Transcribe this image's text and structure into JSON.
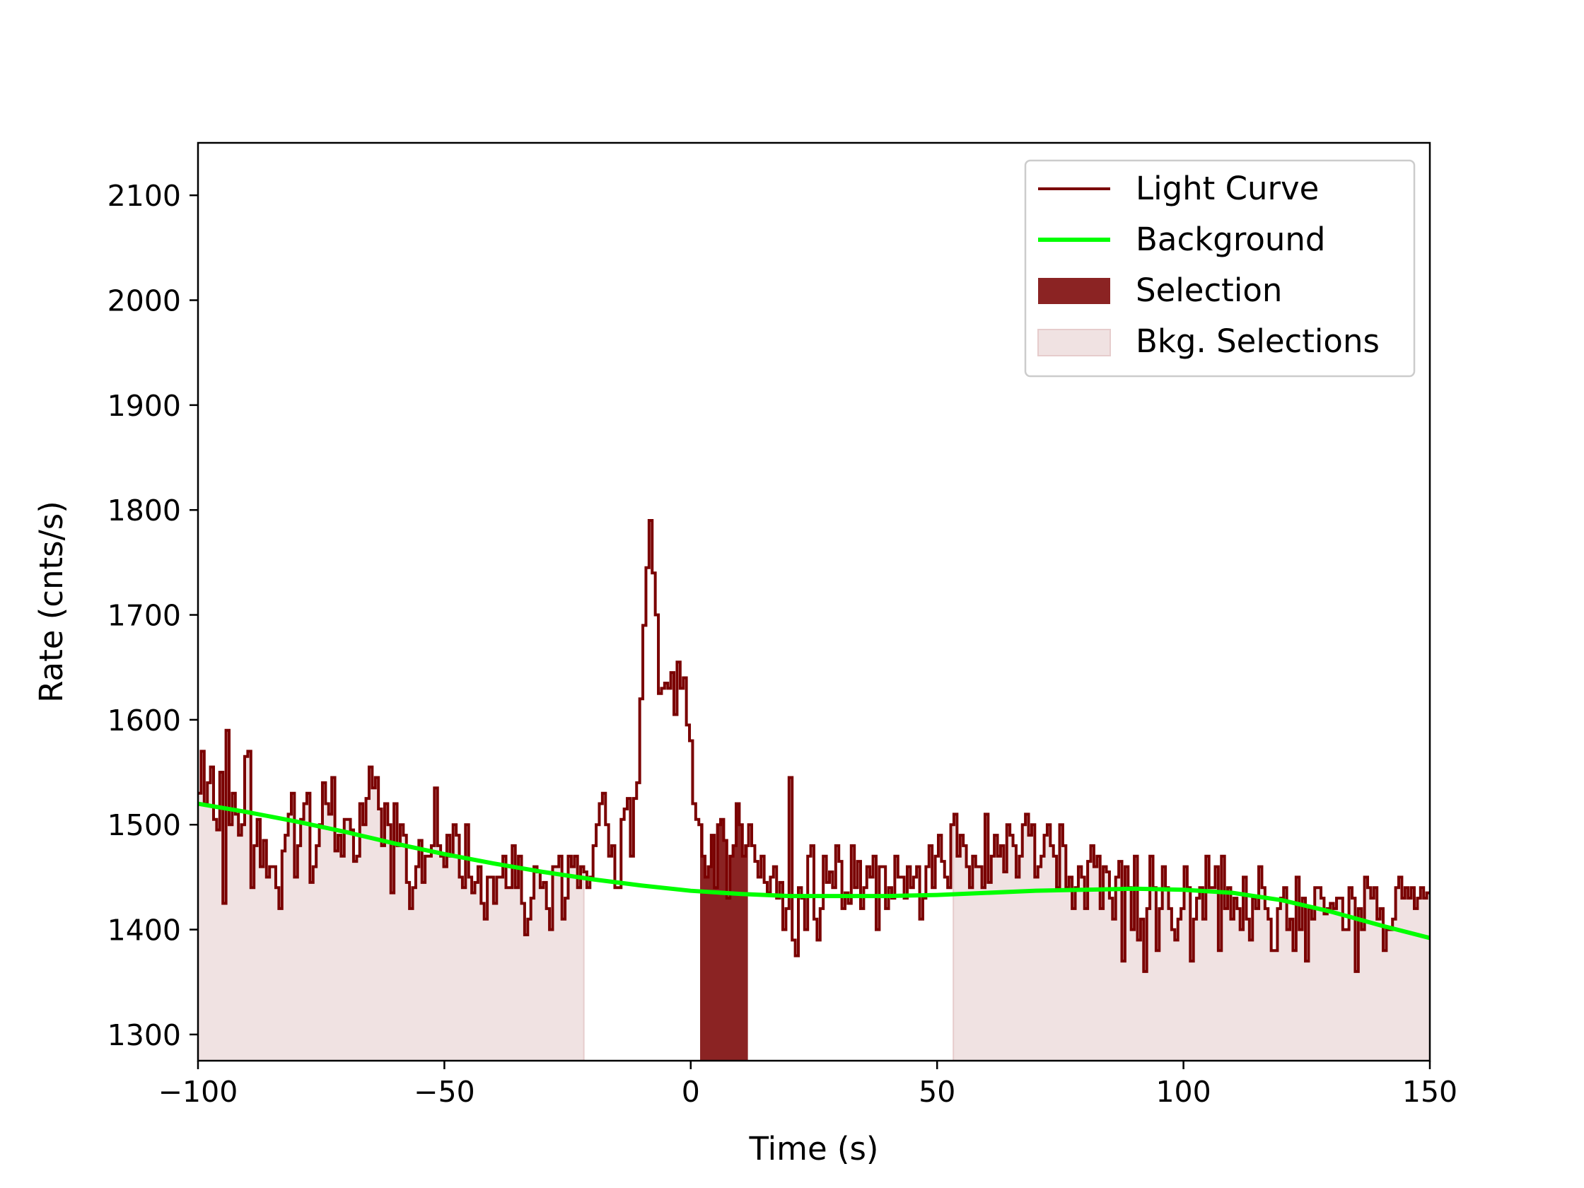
{
  "chart_data": {
    "type": "line",
    "title": "",
    "xlabel": "Time (s)",
    "ylabel": "Rate (cnts/s)",
    "xlim": [
      -100,
      150
    ],
    "ylim": [
      1275,
      2150
    ],
    "x_ticks": [
      -100,
      -50,
      0,
      50,
      100,
      150
    ],
    "x_tick_labels": [
      "−100",
      "−50",
      "0",
      "50",
      "100",
      "150"
    ],
    "y_ticks": [
      1300,
      1400,
      1500,
      1600,
      1700,
      1800,
      1900,
      2000,
      2100
    ],
    "y_tick_labels": [
      "1300",
      "1400",
      "1500",
      "1600",
      "1700",
      "1800",
      "1900",
      "2000",
      "2100"
    ],
    "grid": false,
    "legend_position": "top-right",
    "legend": [
      "Light Curve",
      "Background",
      "Selection",
      "Bkg. Selections"
    ],
    "colors": {
      "light_curve": "#7a0000",
      "background": "#00ff00",
      "selection": "#8b2323",
      "bkg_selection": "#f0e2e2",
      "bkg_selection_edge": "#e6cccc"
    },
    "bin_width": 1.024,
    "light_curve_x": [
      -100,
      150
    ],
    "light_curve_rates": [
      1530,
      1570,
      1520,
      1540,
      1555,
      1505,
      1495,
      1550,
      1425,
      1590,
      1500,
      1530,
      1510,
      1490,
      1500,
      1565,
      1570,
      1440,
      1480,
      1505,
      1460,
      1485,
      1450,
      1460,
      1460,
      1440,
      1420,
      1475,
      1490,
      1510,
      1530,
      1450,
      1480,
      1505,
      1520,
      1530,
      1445,
      1460,
      1480,
      1500,
      1540,
      1520,
      1510,
      1545,
      1475,
      1490,
      1470,
      1505,
      1505,
      1495,
      1465,
      1470,
      1520,
      1500,
      1525,
      1555,
      1535,
      1545,
      1515,
      1480,
      1520,
      1500,
      1435,
      1520,
      1480,
      1500,
      1490,
      1445,
      1420,
      1440,
      1460,
      1485,
      1445,
      1470,
      1470,
      1480,
      1535,
      1480,
      1470,
      1460,
      1490,
      1470,
      1500,
      1490,
      1450,
      1440,
      1500,
      1450,
      1435,
      1445,
      1460,
      1425,
      1410,
      1450,
      1450,
      1425,
      1450,
      1450,
      1470,
      1440,
      1440,
      1480,
      1440,
      1470,
      1425,
      1395,
      1410,
      1430,
      1460,
      1455,
      1440,
      1445,
      1420,
      1400,
      1460,
      1460,
      1470,
      1410,
      1430,
      1470,
      1460,
      1470,
      1440,
      1460,
      1455,
      1440,
      1450,
      1480,
      1500,
      1520,
      1530,
      1500,
      1470,
      1480,
      1440,
      1440,
      1505,
      1515,
      1525,
      1470,
      1525,
      1540,
      1620,
      1690,
      1745,
      1790,
      1740,
      1700,
      1625,
      1630,
      1635,
      1630,
      1645,
      1605,
      1655,
      1630,
      1640,
      1595,
      1580,
      1520,
      1505,
      1500,
      1470,
      1450,
      1460,
      1490,
      1440,
      1500,
      1505,
      1485,
      1430,
      1470,
      1480,
      1520,
      1500,
      1470,
      1480,
      1500,
      1480,
      1465,
      1450,
      1470,
      1445,
      1435,
      1450,
      1460,
      1430,
      1445,
      1400,
      1420,
      1545,
      1390,
      1375,
      1440,
      1430,
      1400,
      1470,
      1480,
      1410,
      1390,
      1420,
      1470,
      1445,
      1455,
      1440,
      1480,
      1465,
      1420,
      1435,
      1425,
      1480,
      1440,
      1465,
      1420,
      1440,
      1460,
      1450,
      1470,
      1400,
      1460,
      1460,
      1420,
      1440,
      1430,
      1470,
      1450,
      1450,
      1430,
      1460,
      1440,
      1450,
      1460,
      1410,
      1430,
      1460,
      1480,
      1440,
      1470,
      1490,
      1465,
      1450,
      1440,
      1500,
      1510,
      1470,
      1490,
      1480,
      1460,
      1440,
      1470,
      1460,
      1460,
      1440,
      1510,
      1445,
      1470,
      1490,
      1470,
      1480,
      1455,
      1500,
      1490,
      1480,
      1450,
      1470,
      1500,
      1510,
      1490,
      1500,
      1450,
      1460,
      1470,
      1490,
      1500,
      1480,
      1470,
      1440,
      1500,
      1480,
      1440,
      1450,
      1420,
      1440,
      1460,
      1450,
      1420,
      1465,
      1480,
      1460,
      1470,
      1420,
      1460,
      1455,
      1430,
      1410,
      1450,
      1465,
      1370,
      1460,
      1440,
      1400,
      1470,
      1390,
      1410,
      1360,
      1420,
      1470,
      1440,
      1380,
      1420,
      1460,
      1440,
      1420,
      1400,
      1390,
      1410,
      1420,
      1460,
      1440,
      1370,
      1410,
      1430,
      1440,
      1410,
      1470,
      1440,
      1440,
      1460,
      1380,
      1470,
      1420,
      1440,
      1410,
      1430,
      1420,
      1400,
      1450,
      1410,
      1390,
      1430,
      1420,
      1460,
      1440,
      1420,
      1410,
      1380,
      1380,
      1420,
      1430,
      1440,
      1400,
      1410,
      1380,
      1450,
      1400,
      1430,
      1370,
      1420,
      1410,
      1440,
      1440,
      1430,
      1415,
      1420,
      1425,
      1420,
      1430,
      1430,
      1400,
      1400,
      1440,
      1430,
      1360,
      1420,
      1400,
      1450,
      1440,
      1430,
      1440,
      1410,
      1420,
      1380,
      1400,
      1400,
      1410,
      1440,
      1450,
      1430,
      1440,
      1430,
      1440,
      1420,
      1430,
      1440,
      1430,
      1435
    ],
    "background_t": [
      -100,
      -90,
      -80,
      -70,
      -60,
      -50,
      -40,
      -30,
      -20,
      -10,
      0,
      10,
      20,
      30,
      40,
      50,
      60,
      70,
      80,
      90,
      100,
      110,
      120,
      130,
      140,
      150
    ],
    "background_rates": [
      1520,
      1512,
      1503,
      1493,
      1482,
      1472,
      1463,
      1455,
      1448,
      1442,
      1437,
      1434,
      1432,
      1432,
      1432,
      1433,
      1435,
      1437,
      1438,
      1439,
      1438,
      1435,
      1428,
      1417,
      1404,
      1392
    ],
    "selection_interval": [
      1.9,
      11.6
    ],
    "bkg_selection_intervals": [
      [
        -100,
        -21.7
      ],
      [
        53.3,
        150
      ]
    ]
  }
}
